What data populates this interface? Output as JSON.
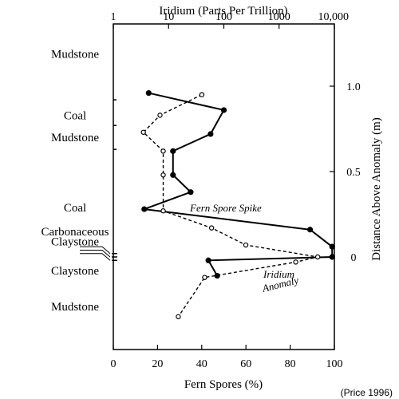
{
  "chart_data": {
    "type": "line",
    "top_axis": {
      "label": "Iridium  (Parts Per Trillion)",
      "scale": "log",
      "range": [
        1,
        10000
      ],
      "ticks": [
        1,
        10,
        100,
        1000,
        10000
      ],
      "tick_labels": [
        "1",
        "10",
        "100",
        "1000",
        "10,000"
      ]
    },
    "bottom_axis": {
      "label": "Fern Spores  (%)",
      "range": [
        0,
        100
      ],
      "ticks": [
        0,
        20,
        40,
        60,
        80,
        100
      ],
      "tick_labels": [
        "0",
        "20",
        "40",
        "60",
        "80",
        "100"
      ]
    },
    "right_axis": {
      "label": "Distance Above Anomaly  (m)",
      "range": [
        -0.55,
        1.3
      ],
      "ticks": [
        0,
        0.5,
        1.0
      ],
      "tick_labels": [
        "0",
        "0.5",
        "1.0"
      ]
    },
    "series": [
      {
        "style": "solid-filled-dots",
        "x_axis": "bottom",
        "points": [
          {
            "x": 16,
            "y": 0.96
          },
          {
            "x": 50,
            "y": 0.86
          },
          {
            "x": 44,
            "y": 0.72
          },
          {
            "x": 27,
            "y": 0.62
          },
          {
            "x": 27,
            "y": 0.48
          },
          {
            "x": 35,
            "y": 0.38
          },
          {
            "x": 14,
            "y": 0.28
          },
          {
            "x": 89,
            "y": 0.16
          },
          {
            "x": 99,
            "y": 0.06
          },
          {
            "x": 99,
            "y": 0.0
          },
          {
            "x": 43,
            "y": -0.02
          },
          {
            "x": 47,
            "y": -0.11
          }
        ]
      },
      {
        "style": "dashed-open-dots",
        "x_axis": "top",
        "points": [
          {
            "x": 40,
            "y": 0.95
          },
          {
            "x": 7,
            "y": 0.83
          },
          {
            "x": 3.5,
            "y": 0.73
          },
          {
            "x": 8,
            "y": 0.62
          },
          {
            "x": 8,
            "y": 0.48
          },
          {
            "x": 8,
            "y": 0.27
          },
          {
            "x": 60,
            "y": 0.17
          },
          {
            "x": 250,
            "y": 0.07
          },
          {
            "x": 5000,
            "y": 0.0
          },
          {
            "x": 2000,
            "y": -0.03
          },
          {
            "x": 45,
            "y": -0.12
          },
          {
            "x": 15,
            "y": -0.35
          }
        ]
      }
    ],
    "lithology": [
      {
        "label": "Mudstone",
        "y": 1.19
      },
      {
        "label": "Coal",
        "y": 0.83
      },
      {
        "label": "Mudstone",
        "y": 0.7
      },
      {
        "label": "Coal",
        "y": 0.29
      },
      {
        "label": "Carbonaceous",
        "y": 0.15
      },
      {
        "label": "Claystone",
        "y": 0.09
      },
      {
        "label": "Claystone",
        "y": -0.08
      },
      {
        "label": "Mudstone",
        "y": -0.29
      }
    ],
    "annotations": {
      "fern_spike": "Fern Spore Spike",
      "iridium_line1": "Iridium",
      "iridium_line2": "Anomaly"
    },
    "credit": "(Price 1996)",
    "grid": false
  }
}
